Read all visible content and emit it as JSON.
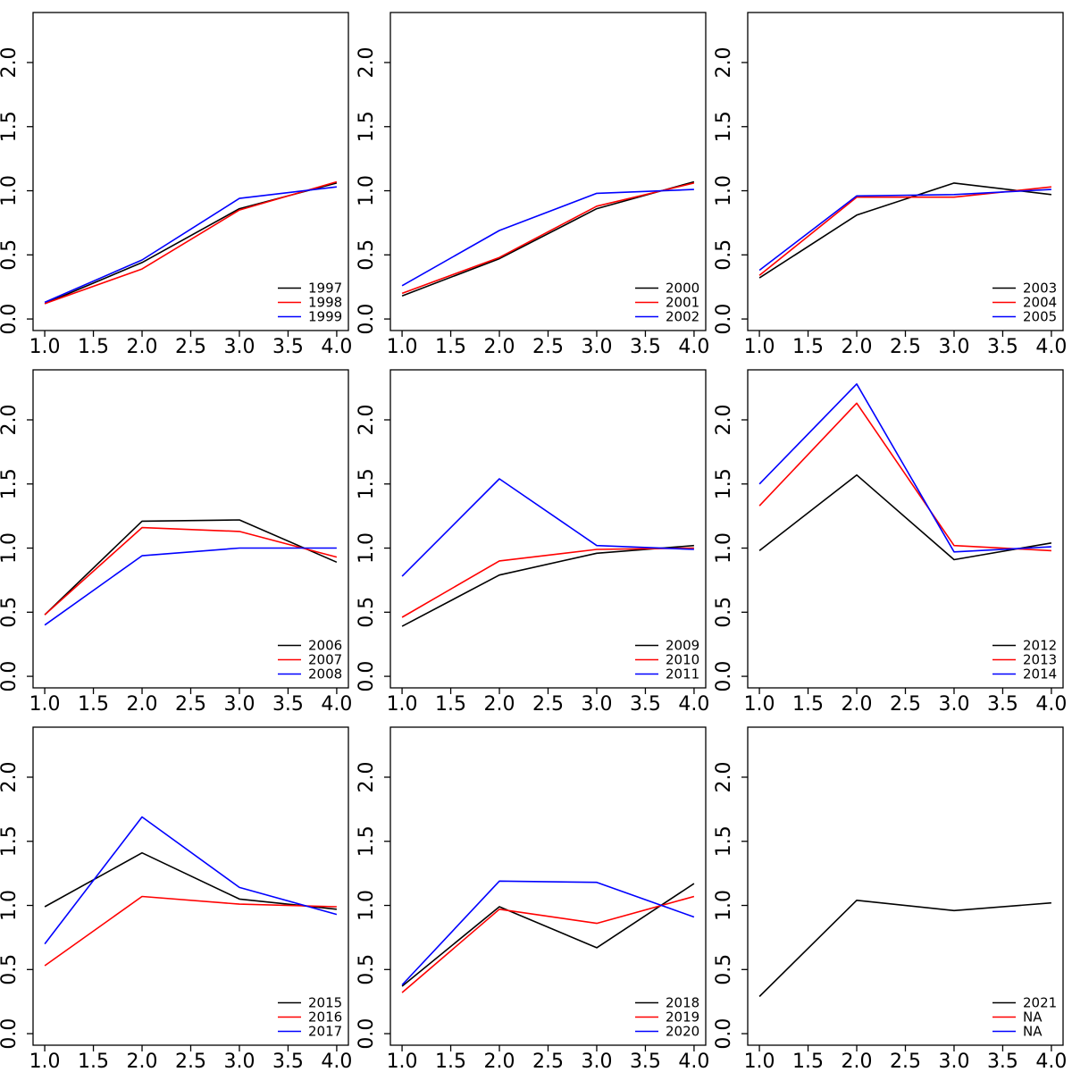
{
  "figure": {
    "background": "#ffffff",
    "axis_color": "#000000",
    "text_color": "#000000",
    "x_tick_labels": [
      "1.0",
      "1.5",
      "2.0",
      "2.5",
      "3.0",
      "3.5",
      "4.0"
    ],
    "y_tick_labels": [
      "0.0",
      "0.5",
      "1.0",
      "1.5",
      "2.0"
    ],
    "legend_position": "bottom-right",
    "grid_lines": false
  },
  "chart_data": [
    {
      "type": "line",
      "x": [
        1,
        2,
        3,
        4
      ],
      "xlim": [
        0.88,
        4.12
      ],
      "ylim": [
        -0.09,
        2.39
      ],
      "xticks": [
        1.0,
        1.5,
        2.0,
        2.5,
        3.0,
        3.5,
        4.0
      ],
      "yticks": [
        0.0,
        0.5,
        1.0,
        1.5,
        2.0
      ],
      "series": [
        {
          "name": "1997",
          "color": "#000000",
          "values": [
            0.12,
            0.44,
            0.86,
            1.06
          ]
        },
        {
          "name": "1998",
          "color": "#ff0000",
          "values": [
            0.12,
            0.39,
            0.85,
            1.07
          ]
        },
        {
          "name": "1999",
          "color": "#0000ff",
          "values": [
            0.13,
            0.46,
            0.94,
            1.03
          ]
        }
      ]
    },
    {
      "type": "line",
      "x": [
        1,
        2,
        3,
        4
      ],
      "xlim": [
        0.88,
        4.12
      ],
      "ylim": [
        -0.09,
        2.39
      ],
      "xticks": [
        1.0,
        1.5,
        2.0,
        2.5,
        3.0,
        3.5,
        4.0
      ],
      "yticks": [
        0.0,
        0.5,
        1.0,
        1.5,
        2.0
      ],
      "series": [
        {
          "name": "2000",
          "color": "#000000",
          "values": [
            0.18,
            0.47,
            0.86,
            1.07
          ]
        },
        {
          "name": "2001",
          "color": "#ff0000",
          "values": [
            0.2,
            0.48,
            0.88,
            1.06
          ]
        },
        {
          "name": "2002",
          "color": "#0000ff",
          "values": [
            0.26,
            0.69,
            0.98,
            1.01
          ]
        }
      ]
    },
    {
      "type": "line",
      "x": [
        1,
        2,
        3,
        4
      ],
      "xlim": [
        0.88,
        4.12
      ],
      "ylim": [
        -0.09,
        2.39
      ],
      "xticks": [
        1.0,
        1.5,
        2.0,
        2.5,
        3.0,
        3.5,
        4.0
      ],
      "yticks": [
        0.0,
        0.5,
        1.0,
        1.5,
        2.0
      ],
      "series": [
        {
          "name": "2003",
          "color": "#000000",
          "values": [
            0.32,
            0.81,
            1.06,
            0.97
          ]
        },
        {
          "name": "2004",
          "color": "#ff0000",
          "values": [
            0.34,
            0.95,
            0.95,
            1.03
          ]
        },
        {
          "name": "2005",
          "color": "#0000ff",
          "values": [
            0.38,
            0.96,
            0.97,
            1.01
          ]
        }
      ]
    },
    {
      "type": "line",
      "x": [
        1,
        2,
        3,
        4
      ],
      "xlim": [
        0.88,
        4.12
      ],
      "ylim": [
        -0.09,
        2.39
      ],
      "xticks": [
        1.0,
        1.5,
        2.0,
        2.5,
        3.0,
        3.5,
        4.0
      ],
      "yticks": [
        0.0,
        0.5,
        1.0,
        1.5,
        2.0
      ],
      "series": [
        {
          "name": "2006",
          "color": "#000000",
          "values": [
            0.48,
            1.21,
            1.22,
            0.89
          ]
        },
        {
          "name": "2007",
          "color": "#ff0000",
          "values": [
            0.48,
            1.16,
            1.13,
            0.93
          ]
        },
        {
          "name": "2008",
          "color": "#0000ff",
          "values": [
            0.4,
            0.94,
            1.0,
            1.0
          ]
        }
      ]
    },
    {
      "type": "line",
      "x": [
        1,
        2,
        3,
        4
      ],
      "xlim": [
        0.88,
        4.12
      ],
      "ylim": [
        -0.09,
        2.39
      ],
      "xticks": [
        1.0,
        1.5,
        2.0,
        2.5,
        3.0,
        3.5,
        4.0
      ],
      "yticks": [
        0.0,
        0.5,
        1.0,
        1.5,
        2.0
      ],
      "series": [
        {
          "name": "2009",
          "color": "#000000",
          "values": [
            0.39,
            0.79,
            0.96,
            1.02
          ]
        },
        {
          "name": "2010",
          "color": "#ff0000",
          "values": [
            0.46,
            0.9,
            0.99,
            1.0
          ]
        },
        {
          "name": "2011",
          "color": "#0000ff",
          "values": [
            0.78,
            1.54,
            1.02,
            0.99
          ]
        }
      ]
    },
    {
      "type": "line",
      "x": [
        1,
        2,
        3,
        4
      ],
      "xlim": [
        0.88,
        4.12
      ],
      "ylim": [
        -0.09,
        2.39
      ],
      "xticks": [
        1.0,
        1.5,
        2.0,
        2.5,
        3.0,
        3.5,
        4.0
      ],
      "yticks": [
        0.0,
        0.5,
        1.0,
        1.5,
        2.0
      ],
      "series": [
        {
          "name": "2012",
          "color": "#000000",
          "values": [
            0.98,
            1.57,
            0.91,
            1.04
          ]
        },
        {
          "name": "2013",
          "color": "#ff0000",
          "values": [
            1.33,
            2.13,
            1.02,
            0.98
          ]
        },
        {
          "name": "2014",
          "color": "#0000ff",
          "values": [
            1.5,
            2.28,
            0.97,
            1.01
          ]
        }
      ]
    },
    {
      "type": "line",
      "x": [
        1,
        2,
        3,
        4
      ],
      "xlim": [
        0.88,
        4.12
      ],
      "ylim": [
        -0.09,
        2.39
      ],
      "xticks": [
        1.0,
        1.5,
        2.0,
        2.5,
        3.0,
        3.5,
        4.0
      ],
      "yticks": [
        0.0,
        0.5,
        1.0,
        1.5,
        2.0
      ],
      "series": [
        {
          "name": "2015",
          "color": "#000000",
          "values": [
            0.99,
            1.41,
            1.05,
            0.97
          ]
        },
        {
          "name": "2016",
          "color": "#ff0000",
          "values": [
            0.53,
            1.07,
            1.01,
            0.99
          ]
        },
        {
          "name": "2017",
          "color": "#0000ff",
          "values": [
            0.7,
            1.69,
            1.14,
            0.93
          ]
        }
      ]
    },
    {
      "type": "line",
      "x": [
        1,
        2,
        3,
        4
      ],
      "xlim": [
        0.88,
        4.12
      ],
      "ylim": [
        -0.09,
        2.39
      ],
      "xticks": [
        1.0,
        1.5,
        2.0,
        2.5,
        3.0,
        3.5,
        4.0
      ],
      "yticks": [
        0.0,
        0.5,
        1.0,
        1.5,
        2.0
      ],
      "series": [
        {
          "name": "2018",
          "color": "#000000",
          "values": [
            0.37,
            0.99,
            0.67,
            1.17
          ]
        },
        {
          "name": "2019",
          "color": "#ff0000",
          "values": [
            0.32,
            0.97,
            0.86,
            1.07
          ]
        },
        {
          "name": "2020",
          "color": "#0000ff",
          "values": [
            0.38,
            1.19,
            1.18,
            0.91
          ]
        }
      ]
    },
    {
      "type": "line",
      "x": [
        1,
        2,
        3,
        4
      ],
      "xlim": [
        0.88,
        4.12
      ],
      "ylim": [
        -0.09,
        2.39
      ],
      "xticks": [
        1.0,
        1.5,
        2.0,
        2.5,
        3.0,
        3.5,
        4.0
      ],
      "yticks": [
        0.0,
        0.5,
        1.0,
        1.5,
        2.0
      ],
      "series": [
        {
          "name": "2021",
          "color": "#000000",
          "values": [
            0.29,
            1.04,
            0.96,
            1.02
          ]
        },
        {
          "name": "NA",
          "color": "#ff0000",
          "values": null
        },
        {
          "name": "NA",
          "color": "#0000ff",
          "values": null
        }
      ]
    }
  ]
}
